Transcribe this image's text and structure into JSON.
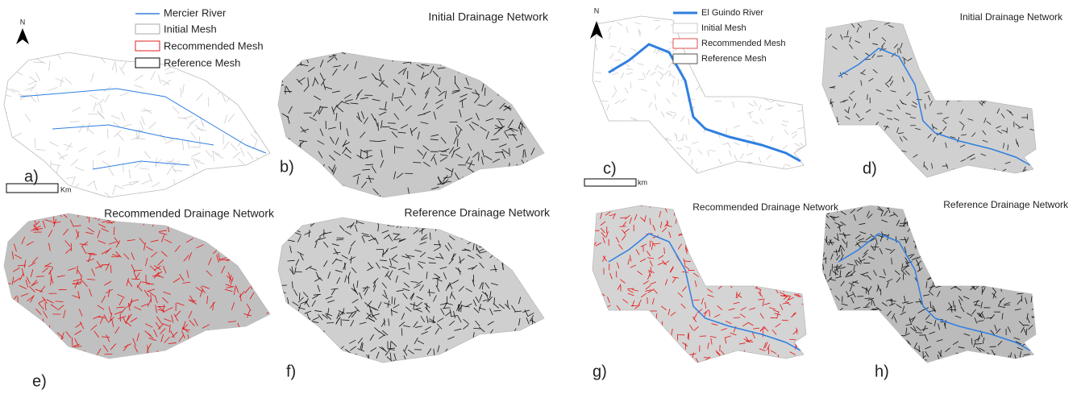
{
  "left": {
    "north": "N",
    "legend": [
      "Mercier River",
      "Initial Mesh",
      "Recommended Mesh",
      "Reference Mesh"
    ],
    "scale_unit": "Km",
    "panels": [
      {
        "label": "a)"
      },
      {
        "label": "b)",
        "title": "Initial Drainage Network"
      },
      {
        "label": "e)",
        "title": "Recommended Drainage Network"
      },
      {
        "label": "f)",
        "title": "Reference Drainage Network"
      }
    ]
  },
  "right": {
    "north": "N",
    "legend": [
      "El Guindo River",
      "Initial Mesh",
      "Recommended Mesh",
      "Reference Mesh"
    ],
    "scale_unit": "km",
    "panels": [
      {
        "label": "c)"
      },
      {
        "label": "d)",
        "title": "Initial Drainage Network"
      },
      {
        "label": "g)",
        "title": "Recommended Drainage Network"
      },
      {
        "label": "h)",
        "title": "Reference Drainage Network"
      }
    ]
  }
}
